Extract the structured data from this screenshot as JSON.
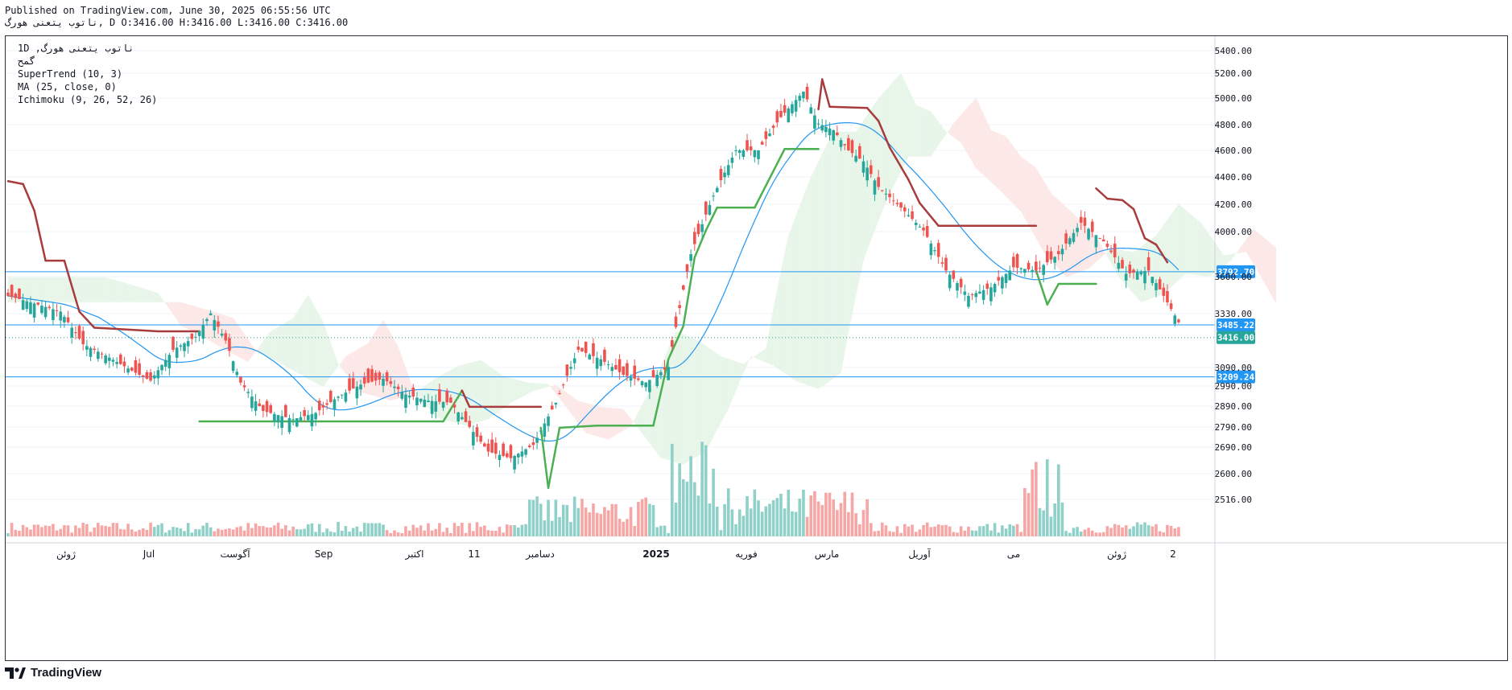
{
  "header": {
    "published": "Published on TradingView.com, June 30, 2025 06:55:56 UTC",
    "symbol_line_prefix": "ناتوب يتعنی هورگ",
    "ohlc": ", D O:3416.00 H:3416.00 L:3416.00 C:3416.00"
  },
  "legend": {
    "line1": "1D ,ناتوب يتعنی هورگ",
    "line2": "گمح",
    "supertrend": "SuperTrend (10, 3)",
    "ma": "MA (25, close, 0)",
    "ichimoku": "Ichimoku (9, 26, 52, 26)"
  },
  "footer": {
    "brand": "TradingView"
  },
  "colors": {
    "up": "#26a69a",
    "down": "#ef5350",
    "supertrend_up": "#4caf50",
    "supertrend_down": "#a83b3b",
    "ma": "#2196f3",
    "level": "#2196f3",
    "cloud_bull": "#e8f5e9",
    "cloud_bear": "#fde8e8",
    "price_tag": "#2196f3",
    "last_tag": "#26a69a"
  },
  "chart_data": {
    "type": "candlestick",
    "interval": "1D",
    "y_axis": {
      "ticks": [
        5400,
        5200,
        5000,
        4800,
        4600,
        4400,
        4200,
        4000,
        3600,
        3330,
        3090,
        2990,
        2890,
        2790,
        2690,
        2600,
        2516
      ],
      "tick_labels": [
        "5400.00",
        "5200.00",
        "5000.00",
        "4800.00",
        "4600.00",
        "4400.00",
        "4200.00",
        "4000.00",
        "3600.00",
        "3330.00",
        "3090.00",
        "2990.00",
        "2890.00",
        "2790.00",
        "2690.00",
        "2600.00",
        "2516.00"
      ],
      "scale": "log"
    },
    "price_levels": [
      {
        "value": 3792.7,
        "label": "3792.70"
      },
      {
        "value": 3485.22,
        "label": "3485.22"
      },
      {
        "value": 3209.24,
        "label": "3209.24"
      }
    ],
    "last_price": {
      "value": 3416.0,
      "label": "3416.00"
    },
    "x_axis": {
      "ticks": [
        "ژوئن",
        "Jul",
        "آگوست",
        "Sep",
        "اکتبر",
        "11",
        "دسامبر",
        "2025",
        "فوریه",
        "مارس",
        "آوریل",
        "می",
        "ژوئن",
        "2"
      ]
    },
    "supertrend_nodes": [
      {
        "i": 0,
        "v": 4380,
        "d": "down"
      },
      {
        "i": 4,
        "v": 4360,
        "d": "down"
      },
      {
        "i": 7,
        "v": 4180,
        "d": "down"
      },
      {
        "i": 10,
        "v": 3860,
        "d": "down"
      },
      {
        "i": 15,
        "v": 3860,
        "d": "down"
      },
      {
        "i": 19,
        "v": 3560,
        "d": "down"
      },
      {
        "i": 23,
        "v": 3470,
        "d": "down"
      },
      {
        "i": 40,
        "v": 3450,
        "d": "down"
      },
      {
        "i": 51,
        "v": 3450,
        "d": "down"
      },
      {
        "i": 51,
        "v": 2990,
        "d": "up"
      },
      {
        "i": 116,
        "v": 2990,
        "d": "up"
      },
      {
        "i": 121,
        "v": 3140,
        "d": "up"
      },
      {
        "i": 121,
        "v": 3140,
        "d": "down"
      },
      {
        "i": 123,
        "v": 3060,
        "d": "down"
      },
      {
        "i": 142,
        "v": 3060,
        "d": "down"
      },
      {
        "i": 142,
        "v": 2960,
        "d": "up"
      },
      {
        "i": 144,
        "v": 2690,
        "d": "up"
      },
      {
        "i": 147,
        "v": 2960,
        "d": "up"
      },
      {
        "i": 157,
        "v": 2970,
        "d": "up"
      },
      {
        "i": 172,
        "v": 2970,
        "d": "up"
      },
      {
        "i": 176,
        "v": 3300,
        "d": "up"
      },
      {
        "i": 180,
        "v": 3480,
        "d": "up"
      },
      {
        "i": 183,
        "v": 3880,
        "d": "up"
      },
      {
        "i": 186,
        "v": 4050,
        "d": "up"
      },
      {
        "i": 189,
        "v": 4200,
        "d": "up"
      },
      {
        "i": 199,
        "v": 4200,
        "d": "up"
      },
      {
        "i": 203,
        "v": 4400,
        "d": "up"
      },
      {
        "i": 207,
        "v": 4610,
        "d": "up"
      },
      {
        "i": 216,
        "v": 4610,
        "d": "up"
      },
      {
        "i": 216,
        "v": 4910,
        "d": "down"
      },
      {
        "i": 217,
        "v": 5150,
        "d": "down"
      },
      {
        "i": 219,
        "v": 4930,
        "d": "down"
      },
      {
        "i": 229,
        "v": 4920,
        "d": "down"
      },
      {
        "i": 232,
        "v": 4820,
        "d": "down"
      },
      {
        "i": 235,
        "v": 4620,
        "d": "down"
      },
      {
        "i": 240,
        "v": 4390,
        "d": "down"
      },
      {
        "i": 243,
        "v": 4230,
        "d": "down"
      },
      {
        "i": 248,
        "v": 4080,
        "d": "down"
      },
      {
        "i": 274,
        "v": 4080,
        "d": "down"
      },
      {
        "i": 274,
        "v": 3800,
        "d": "up"
      },
      {
        "i": 277,
        "v": 3600,
        "d": "up"
      },
      {
        "i": 280,
        "v": 3720,
        "d": "up"
      },
      {
        "i": 290,
        "v": 3720,
        "d": "up"
      },
      {
        "i": 290,
        "v": 4330,
        "d": "down"
      },
      {
        "i": 293,
        "v": 4260,
        "d": "down"
      },
      {
        "i": 297,
        "v": 4250,
        "d": "down"
      },
      {
        "i": 300,
        "v": 4190,
        "d": "down"
      },
      {
        "i": 303,
        "v": 4000,
        "d": "down"
      },
      {
        "i": 306,
        "v": 3960,
        "d": "down"
      },
      {
        "i": 309,
        "v": 3850,
        "d": "down"
      }
    ]
  }
}
